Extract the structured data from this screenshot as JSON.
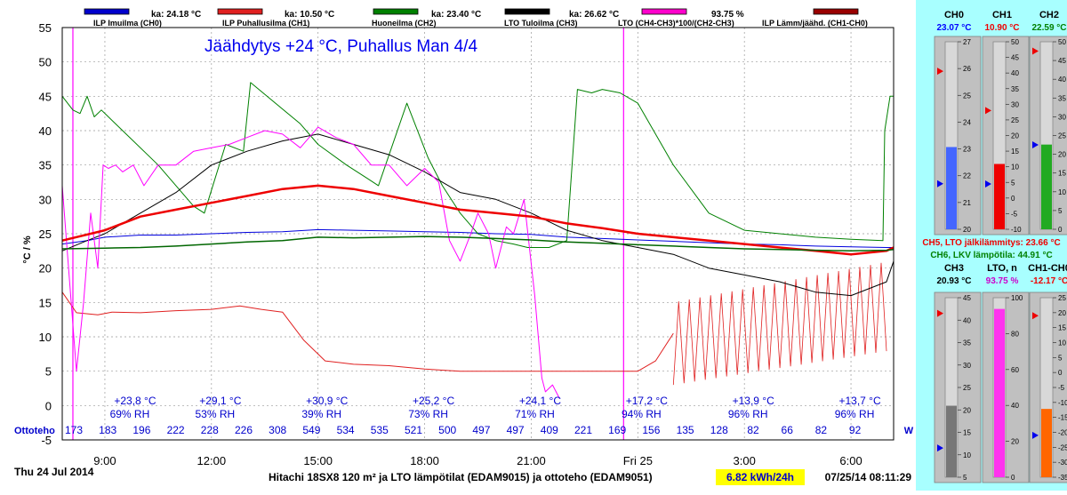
{
  "chart_data": {
    "type": "line",
    "title": "Jäähdytys +24 °C, Puhallus Man 4/4",
    "ylabel": "°C / %",
    "ylim": [
      -5,
      55
    ],
    "yticks": [
      -5,
      0,
      5,
      10,
      15,
      20,
      25,
      30,
      35,
      40,
      45,
      50,
      55
    ],
    "xlim": [
      7.8,
      31.2
    ],
    "xticks": [
      {
        "x": 9,
        "label": "9:00"
      },
      {
        "x": 12,
        "label": "12:00"
      },
      {
        "x": 15,
        "label": "15:00"
      },
      {
        "x": 18,
        "label": "18:00"
      },
      {
        "x": 21,
        "label": "21:00"
      },
      {
        "x": 24,
        "label": "Fri 25"
      },
      {
        "x": 27,
        "label": "3:00"
      },
      {
        "x": 30,
        "label": "6:00"
      }
    ],
    "grid": true,
    "legend_position": "top",
    "legend": [
      {
        "name": "ILP Imuilma (CH0)",
        "avg": "ka: 24.18 °C",
        "color": "#0000cc"
      },
      {
        "name": "ILP Puhallusilma (CH1)",
        "avg": "ka: 10.50 °C",
        "color": "#e02020"
      },
      {
        "name": "Huoneilma (CH2)",
        "avg": "ka: 23.40 °C",
        "color": "#008000"
      },
      {
        "name": "LTO Tuloilma (CH3)",
        "avg": "ka: 26.62 °C",
        "color": "#000000"
      },
      {
        "name": "LTO (CH4-CH3)*100/(CH2-CH3)",
        "avg": "93.75 %",
        "color": "#ff00cc"
      },
      {
        "name": "ILP Lämm/jäähd. (CH1-CH0)",
        "avg": "",
        "color": "#990000"
      }
    ],
    "markers": [
      {
        "x": 8.1,
        "color": "#ff00ff"
      },
      {
        "x": 23.6,
        "color": "#ff00ff"
      }
    ],
    "series": [
      {
        "key": "ch0",
        "color": "#0000dd",
        "width": 1,
        "x": [
          7.8,
          8.5,
          9,
          10,
          11,
          12,
          13,
          14,
          15,
          16,
          17,
          18,
          19,
          20,
          21,
          22,
          23,
          24,
          25,
          26,
          27,
          28,
          29,
          30,
          31,
          31.2
        ],
        "y": [
          23.5,
          24.0,
          24.5,
          24.8,
          24.8,
          25.0,
          25.2,
          25.3,
          25.6,
          25.5,
          25.4,
          25.3,
          25.2,
          25.0,
          24.9,
          24.5,
          24.3,
          24.1,
          23.9,
          23.7,
          23.5,
          23.4,
          23.2,
          23.1,
          23.0,
          23.0
        ]
      },
      {
        "key": "ch1",
        "color": "#e02020",
        "width": 1,
        "x": [
          7.8,
          8.2,
          8.8,
          9.2,
          10,
          11,
          12,
          12.8,
          13.4,
          14,
          14.6,
          15.2,
          16,
          17,
          18,
          19,
          20,
          21,
          22,
          23,
          24,
          24.5,
          25
        ],
        "y": [
          16.5,
          13.5,
          13.2,
          13.6,
          13.5,
          13.8,
          14.0,
          14.5,
          14.0,
          13.6,
          9.5,
          6.5,
          6.0,
          5.8,
          5.3,
          5.0,
          5.0,
          5.0,
          5.0,
          5.0,
          5.0,
          6.5,
          10.5
        ]
      },
      {
        "key": "ch2",
        "color": "#008000",
        "width": 1,
        "x": [
          7.8,
          8.1,
          8.3,
          8.5,
          8.7,
          8.9,
          9.5,
          10.5,
          11.5,
          11.8,
          12.4,
          12.9,
          13.1,
          14.5,
          15,
          15.8,
          16.4,
          16.7,
          17.5,
          18.1,
          18.5,
          19,
          19.5,
          20,
          20.5,
          20.9,
          21.5,
          22,
          22.3,
          22.7,
          23,
          23.5,
          24,
          25,
          26,
          27,
          28,
          29,
          30,
          30.9,
          30.95,
          31.1,
          31.2
        ],
        "y": [
          45,
          43,
          42.5,
          45,
          42,
          43,
          40,
          35,
          29,
          28,
          38,
          37,
          47,
          41,
          38,
          35,
          33,
          32,
          44,
          36,
          32,
          28,
          25,
          24,
          23.5,
          23,
          23,
          24,
          46,
          45.5,
          46,
          45.5,
          44,
          35,
          28,
          25.5,
          25,
          24.5,
          24.2,
          24,
          40,
          45,
          45
        ]
      },
      {
        "key": "ch3",
        "color": "#000000",
        "width": 1,
        "x": [
          7.8,
          8.5,
          9,
          10,
          11,
          12,
          13,
          14,
          15,
          16,
          17,
          18,
          19,
          20,
          21,
          22,
          23,
          24,
          25,
          26,
          27,
          28,
          29,
          30,
          31,
          31.2
        ],
        "y": [
          22.5,
          24,
          25,
          28,
          31,
          35,
          37,
          38.5,
          39.5,
          38,
          36.5,
          34,
          31,
          30,
          28,
          25.5,
          24,
          23,
          22,
          20,
          19,
          18,
          16.5,
          16,
          18,
          21
        ]
      },
      {
        "key": "lto",
        "color": "#ff00ff",
        "width": 1,
        "x": [
          7.8,
          8.2,
          8.4,
          8.6,
          8.8,
          8.95,
          9.1,
          9.3,
          9.5,
          9.8,
          10.1,
          10.5,
          11,
          11.5,
          12,
          12.5,
          13,
          13.5,
          14,
          14.5,
          15,
          15.5,
          16,
          16.5,
          17,
          17.5,
          18,
          18.4,
          18.7,
          19,
          19.3,
          19.5,
          19.8,
          20,
          20.3,
          20.5,
          20.8,
          21.1,
          21.3,
          21.4,
          21.6,
          21.8
        ],
        "y": [
          32,
          5,
          15,
          28,
          20,
          35,
          34.5,
          35,
          34,
          35,
          32,
          35,
          35,
          37,
          37.5,
          38,
          39,
          40,
          39.5,
          37.5,
          40.5,
          39,
          38,
          35,
          35,
          32,
          34.5,
          32.5,
          24,
          21,
          25,
          28,
          25,
          20,
          26,
          25,
          30,
          16,
          4,
          2,
          3,
          1
        ]
      },
      {
        "key": "ch5",
        "color": "#ee0000",
        "width": 2.5,
        "x": [
          7.8,
          9,
          10,
          11,
          12,
          13,
          14,
          15,
          16,
          17,
          18,
          19,
          20,
          21,
          22,
          23,
          24,
          25,
          26,
          27,
          28,
          29,
          30,
          31,
          31.2
        ],
        "y": [
          24,
          25.5,
          27.5,
          28.5,
          29.5,
          30.5,
          31.5,
          32.0,
          31.5,
          30.5,
          29.5,
          28.5,
          28.0,
          27.5,
          26.5,
          25.8,
          25.0,
          24.5,
          24.0,
          23.5,
          23.0,
          22.5,
          22.0,
          22.5,
          23.0
        ]
      },
      {
        "key": "ch6",
        "color": "#006600",
        "width": 1.5,
        "x": [
          7.8,
          9,
          10,
          11,
          12,
          13,
          14,
          15,
          16,
          17,
          18,
          19,
          20,
          21,
          22,
          23,
          24,
          25,
          26,
          27,
          28,
          29,
          30,
          31,
          31.2
        ],
        "y": [
          22.8,
          22.9,
          23.0,
          23.2,
          23.5,
          23.8,
          24.0,
          24.5,
          24.4,
          24.5,
          24.6,
          24.5,
          24.3,
          24.1,
          23.8,
          23.6,
          23.4,
          23.2,
          23.0,
          22.8,
          22.7,
          22.6,
          22.5,
          22.6,
          22.7
        ]
      }
    ],
    "oscillations": [
      {
        "color": "#e02020",
        "x0": 25.0,
        "x1": 31.1,
        "step": 0.15,
        "lowStart": 3,
        "lowEnd": 8,
        "highStart": 15,
        "highEnd": 21
      }
    ],
    "annotations": [
      {
        "x": 9.4,
        "temp": "+23,8 °C",
        "rh": "69% RH"
      },
      {
        "x": 11.8,
        "temp": "+29,1 °C",
        "rh": "53% RH"
      },
      {
        "x": 14.8,
        "temp": "+30,9 °C",
        "rh": "39% RH"
      },
      {
        "x": 17.8,
        "temp": "+25,2 °C",
        "rh": "73% RH"
      },
      {
        "x": 20.8,
        "temp": "+24,1 °C",
        "rh": "71% RH"
      },
      {
        "x": 23.8,
        "temp": "+17,2 °C",
        "rh": "94% RH"
      },
      {
        "x": 26.8,
        "temp": "+13,9 °C",
        "rh": "96% RH"
      },
      {
        "x": 29.8,
        "temp": "+13,7 °C",
        "rh": "96% RH"
      }
    ],
    "ottoteho": {
      "label": "Ottoteho",
      "unit": "W",
      "values": [
        "173",
        "183",
        "196",
        "222",
        "228",
        "226",
        "308",
        "549",
        "534",
        "535",
        "521",
        "500",
        "497",
        "497",
        "409",
        "221",
        "169",
        "156",
        "135",
        "128",
        "82",
        "66",
        "82",
        "92"
      ]
    }
  },
  "footer": {
    "date": "Thu 24 Jul 2014",
    "description": "Hitachi 18SX8 120 m² ja LTO lämpötilat (EDAM9015) ja ottoteho (EDAM9051)",
    "energy": "6.82  kWh/24h",
    "timestamp": "07/25/14 08:11:29"
  },
  "gauges": [
    {
      "name": "CH0",
      "value": "23.07 °C",
      "value_color": "#0000ff",
      "fill": "#4466ff",
      "min": 20,
      "max": 27,
      "ticks": [
        "27",
        "26",
        "25",
        "24",
        "23",
        "22",
        "21",
        "20"
      ],
      "level": 23.07,
      "red_marker": 25.9,
      "blue_marker": 21.7
    },
    {
      "name": "CH1",
      "value": "10.90 °C",
      "value_color": "#ee0000",
      "fill": "#ee0000",
      "min": -10,
      "max": 50,
      "ticks": [
        "50",
        "45",
        "40",
        "35",
        "30",
        "25",
        "20",
        "15",
        "10",
        "5",
        "0",
        "-5",
        "-10"
      ],
      "level": 10.9,
      "red_marker": 28,
      "blue_marker": 4.5
    },
    {
      "name": "CH2",
      "value": "22.59 °C",
      "value_color": "#008000",
      "fill": "#22aa22",
      "min": 0,
      "max": 50,
      "ticks": [
        "50",
        "45",
        "40",
        "35",
        "30",
        "25",
        "20",
        "15",
        "10",
        "5",
        "0"
      ],
      "level": 22.59,
      "red_marker": 47.5,
      "blue_marker": 22.5
    },
    {
      "name": "CH3",
      "value": "20.93 °C",
      "value_color": "#000000",
      "fill": "#777777",
      "min": 5,
      "max": 45,
      "ticks": [
        "45",
        "40",
        "35",
        "30",
        "25",
        "20",
        "15",
        "10",
        "5"
      ],
      "level": 20.93,
      "red_marker": 41.5,
      "blue_marker": 11.5
    },
    {
      "name": "LTO, n",
      "value": "93.75 %",
      "value_color": "#cc00cc",
      "fill": "#ff33ee",
      "min": 0,
      "max": 100,
      "ticks": [
        "100",
        "80",
        "60",
        "40",
        "20",
        "0"
      ],
      "level": 93.75,
      "red_marker": null,
      "blue_marker": null
    },
    {
      "name": "CH1-CH0",
      "value": "-12.17 °C",
      "value_color": "#ee0000",
      "fill": "#ff6600",
      "min": -35,
      "max": 25,
      "ticks": [
        "25",
        "20",
        "15",
        "10",
        "5",
        "0",
        "-5",
        "-10",
        "-15",
        "-20",
        "-25",
        "-30",
        "-35"
      ],
      "level": -12.17,
      "red_marker": 19,
      "blue_marker": -21
    }
  ],
  "info": {
    "ch5": "CH5, LTO jälkilämmitys: 23.66 °C",
    "ch6": "CH6, LKV lämpötila: 44.91 °C"
  }
}
